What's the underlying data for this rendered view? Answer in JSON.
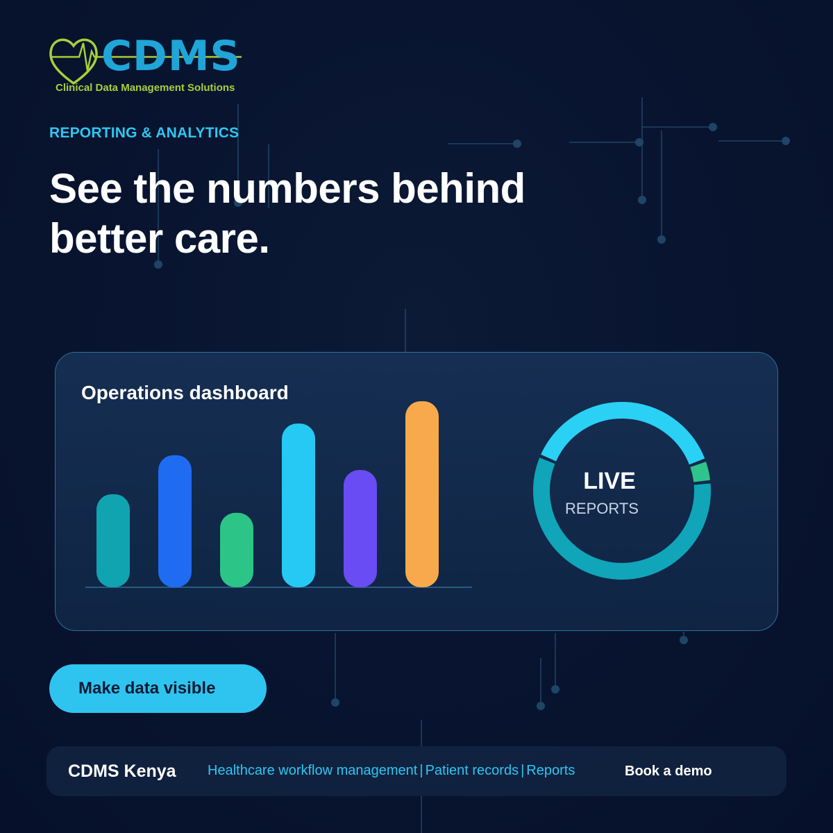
{
  "brand": {
    "logo_text": "CDMS",
    "tagline": "Clinical Data Management Solutions"
  },
  "eyebrow": "REPORTING & ANALYTICS",
  "headline": {
    "line1": "See the numbers behind",
    "line2": "better care."
  },
  "card": {
    "title": "Operations dashboard",
    "donut_line1": "LIVE",
    "donut_line2": "REPORTS"
  },
  "chart_data": [
    {
      "type": "bar",
      "title": "Operations dashboard",
      "values": [
        50,
        71,
        40,
        88,
        63,
        100
      ],
      "colors": [
        "#10a3b0",
        "#1f6cf2",
        "#2cc487",
        "#26c9f4",
        "#6a4cf5",
        "#f8a94c"
      ]
    },
    {
      "type": "pie",
      "values": [
        38,
        4,
        58
      ],
      "colors": [
        "#2bd0f5",
        "#2ec48a",
        "#10a5b8"
      ]
    }
  ],
  "cta_label": "Make data visible",
  "footer": {
    "brand": "CDMS Kenya",
    "links": [
      "Healthcare workflow management",
      "Patient records",
      "Reports"
    ],
    "demo": "Book a demo"
  },
  "colors": {
    "background": "#091530",
    "accent": "#2fc4f0",
    "logo_green": "#a8cf3a",
    "logo_blue": "#1fa5d8"
  }
}
